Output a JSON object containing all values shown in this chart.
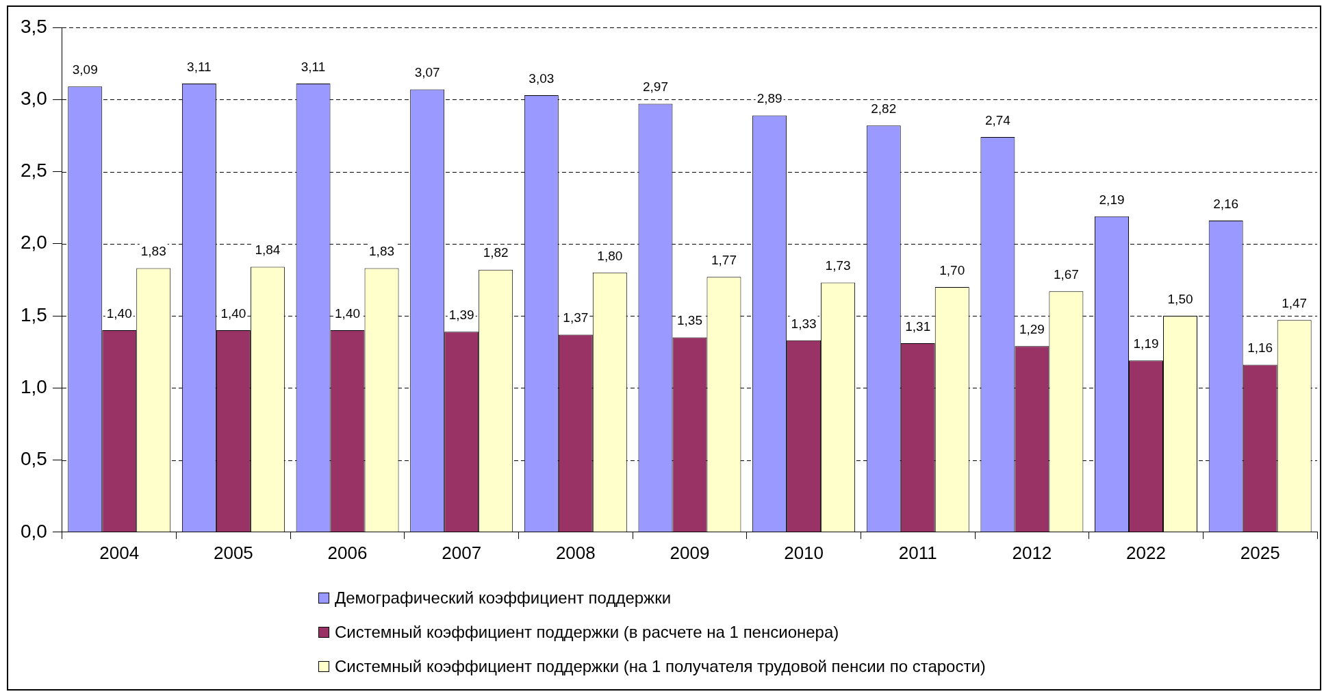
{
  "chart_data": {
    "type": "bar",
    "categories": [
      "2004",
      "2005",
      "2006",
      "2007",
      "2008",
      "2009",
      "2010",
      "2011",
      "2012",
      "2022",
      "2025"
    ],
    "series": [
      {
        "name": "Демографический коэффициент поддержки",
        "color": "#9999ff",
        "values": [
          3.09,
          3.11,
          3.11,
          3.07,
          3.03,
          2.97,
          2.89,
          2.82,
          2.74,
          2.19,
          2.16
        ],
        "value_labels": [
          "3,09",
          "3,11",
          "3,11",
          "3,07",
          "3,03",
          "2,97",
          "2,89",
          "2,82",
          "2,74",
          "2,19",
          "2,16"
        ]
      },
      {
        "name": "Системный коэффициент поддержки (в расчете на 1 пенсионера)",
        "color": "#993366",
        "values": [
          1.4,
          1.4,
          1.4,
          1.39,
          1.37,
          1.35,
          1.33,
          1.31,
          1.29,
          1.19,
          1.16
        ],
        "value_labels": [
          "1,40",
          "1,40",
          "1,40",
          "1,39",
          "1,37",
          "1,35",
          "1,33",
          "1,31",
          "1,29",
          "1,19",
          "1,16"
        ]
      },
      {
        "name": "Системный коэффициент поддержки (на 1 получателя трудовой пенсии по старости)",
        "color": "#ffffcc",
        "values": [
          1.83,
          1.84,
          1.83,
          1.82,
          1.8,
          1.77,
          1.73,
          1.7,
          1.67,
          1.5,
          1.47
        ],
        "value_labels": [
          "1,83",
          "1,84",
          "1,83",
          "1,82",
          "1,80",
          "1,77",
          "1,73",
          "1,70",
          "1,67",
          "1,50",
          "1,47"
        ]
      }
    ],
    "ylim": [
      0,
      3.5
    ],
    "yticks": [
      {
        "value": 0,
        "label": "0,0"
      },
      {
        "value": 0.5,
        "label": "0,5"
      },
      {
        "value": 1,
        "label": "1,0"
      },
      {
        "value": 1.5,
        "label": "1,5"
      },
      {
        "value": 2,
        "label": "2,0"
      },
      {
        "value": 2.5,
        "label": "2,5"
      },
      {
        "value": 3,
        "label": "3,0"
      },
      {
        "value": 3.5,
        "label": "3,5"
      }
    ],
    "grid": "y",
    "legend": "bottom"
  }
}
